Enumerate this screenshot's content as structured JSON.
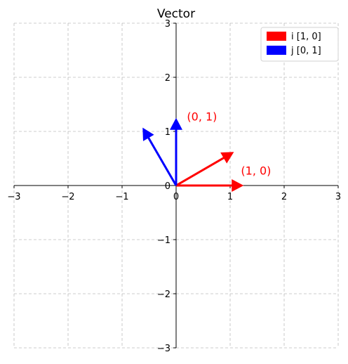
{
  "chart_data": {
    "type": "quiver",
    "title": "Vector",
    "xlabel": "",
    "ylabel": "",
    "xlim": [
      -3,
      3
    ],
    "ylim": [
      -3,
      3
    ],
    "xticks": [
      -3,
      -2,
      -1,
      0,
      1,
      2,
      3
    ],
    "yticks": [
      -3,
      -2,
      -1,
      0,
      1,
      2,
      3
    ],
    "xtick_labels": [
      "−3",
      "−2",
      "−1",
      "0",
      "1",
      "2",
      "3"
    ],
    "ytick_labels": [
      "−3",
      "−2",
      "−1",
      "0",
      "1",
      "2",
      "3"
    ],
    "grid": true,
    "legend_position": "top-right",
    "series": [
      {
        "name": "i [1, 0]",
        "color": "#ff0000",
        "vectors": [
          {
            "x0": 0,
            "y0": 0,
            "dx": 1.25,
            "dy": 0
          },
          {
            "x0": 0,
            "y0": 0,
            "dx": 1.07,
            "dy": 0.62
          }
        ]
      },
      {
        "name": "j [0, 1]",
        "color": "#0000ff",
        "vectors": [
          {
            "x0": 0,
            "y0": 0,
            "dx": 0,
            "dy": 1.25
          },
          {
            "x0": 0,
            "y0": 0,
            "dx": -0.62,
            "dy": 1.07
          }
        ]
      }
    ],
    "annotations": [
      {
        "text": "(1, 0)",
        "x": 1.2,
        "y": 0.2,
        "color": "#ff0000"
      },
      {
        "text": "(0, 1)",
        "x": 0.2,
        "y": 1.2,
        "color": "#ff0000"
      }
    ]
  }
}
